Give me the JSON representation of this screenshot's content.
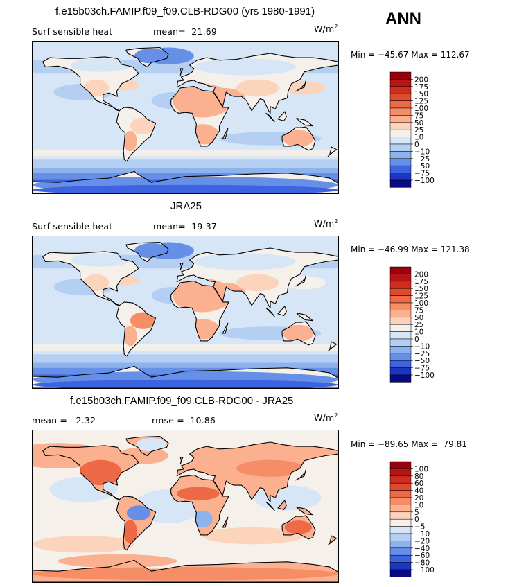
{
  "season": "ANN",
  "units_base": "W/m",
  "units_exp": "2",
  "chart_data": [
    {
      "type": "heatmap",
      "title": "f.e15b03ch.FAMIP.f09_f09.CLB-RDG00 (yrs 1980-1991)",
      "left_label": "Surf sensible heat",
      "stat_text": "mean=  21.69",
      "min": -45.67,
      "max": 112.67,
      "minmax_text": "Min = −45.67 Max = 112.67",
      "levels": [
        "200",
        "175",
        "150",
        "125",
        "100",
        "75",
        "50",
        "25",
        "10",
        "0",
        "−10",
        "−25",
        "−50",
        "−75",
        "−100"
      ],
      "colors": [
        "#99000d",
        "#b71414",
        "#cf2d1e",
        "#e04a2e",
        "#ee6a47",
        "#f58d67",
        "#fbb18f",
        "#fcd3bb",
        "#f5f0ea",
        "#d7e6f6",
        "#b4cff2",
        "#8eb2ee",
        "#6690e8",
        "#3d63e0",
        "#1c36c2",
        "#0a0a85"
      ]
    },
    {
      "type": "heatmap",
      "title": "JRA25",
      "left_label": "Surf sensible heat",
      "stat_text": "mean=  19.37",
      "min": -46.99,
      "max": 121.38,
      "minmax_text": "Min = −46.99 Max = 121.38",
      "levels": [
        "200",
        "175",
        "150",
        "125",
        "100",
        "75",
        "50",
        "25",
        "10",
        "0",
        "−10",
        "−25",
        "−50",
        "−75",
        "−100"
      ],
      "colors": [
        "#99000d",
        "#b71414",
        "#cf2d1e",
        "#e04a2e",
        "#ee6a47",
        "#f58d67",
        "#fbb18f",
        "#fcd3bb",
        "#f5f0ea",
        "#d7e6f6",
        "#b4cff2",
        "#8eb2ee",
        "#6690e8",
        "#3d63e0",
        "#1c36c2",
        "#0a0a85"
      ]
    },
    {
      "type": "heatmap",
      "title": "f.e15b03ch.FAMIP.f09_f09.CLB-RDG00 - JRA25",
      "left_label": "mean =   2.32",
      "stat_text": "rmse =  10.86",
      "min": -89.65,
      "max": 79.81,
      "minmax_text": "Min = −89.65 Max =  79.81",
      "levels": [
        "100",
        "80",
        "60",
        "40",
        "20",
        "10",
        "5",
        "0",
        "−5",
        "−10",
        "−20",
        "−40",
        "−60",
        "−80",
        "−100"
      ],
      "colors": [
        "#99000d",
        "#b71414",
        "#cf2d1e",
        "#e04a2e",
        "#ee6a47",
        "#f58d67",
        "#fbb18f",
        "#fcd3bb",
        "#f5f0ea",
        "#d7e6f6",
        "#b4cff2",
        "#8eb2ee",
        "#6690e8",
        "#3d63e0",
        "#1c36c2",
        "#0a0a85"
      ]
    }
  ]
}
